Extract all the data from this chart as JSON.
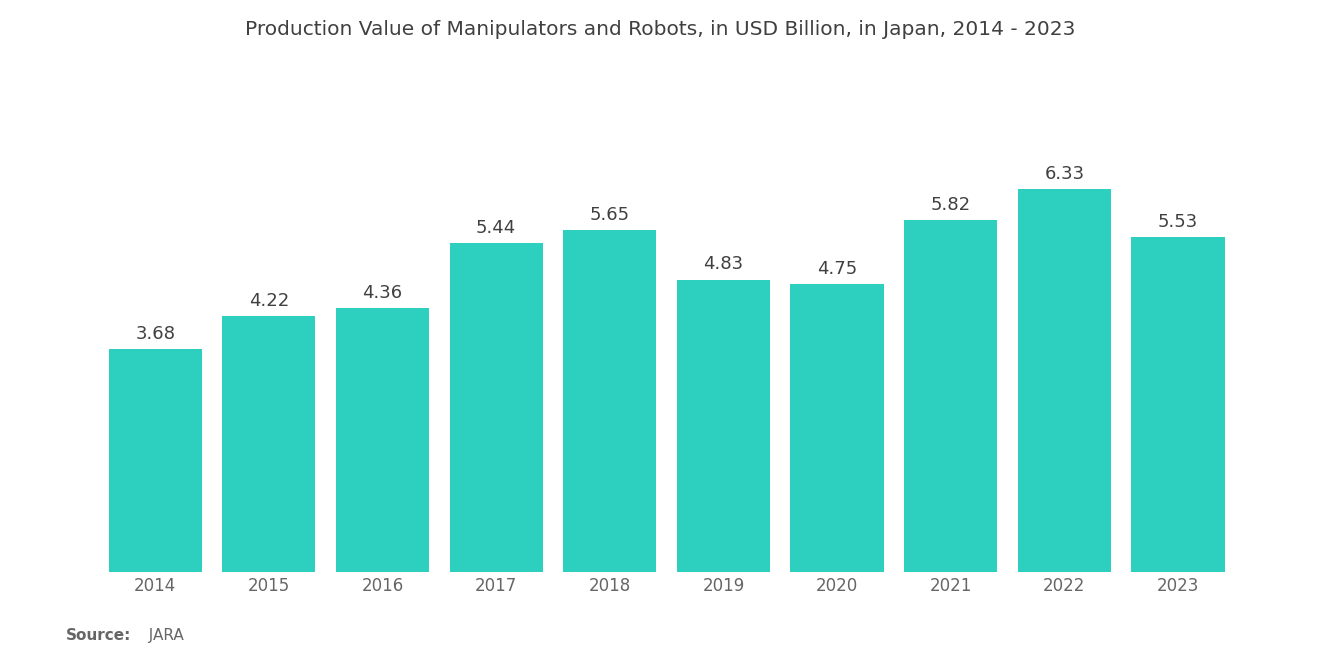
{
  "title": "Production Value of Manipulators and Robots, in USD Billion, in Japan, 2014 - 2023",
  "years": [
    2014,
    2015,
    2016,
    2017,
    2018,
    2019,
    2020,
    2021,
    2022,
    2023
  ],
  "values": [
    3.68,
    4.22,
    4.36,
    5.44,
    5.65,
    4.83,
    4.75,
    5.82,
    6.33,
    5.53
  ],
  "bar_color": "#2DCFBE",
  "background_color": "#FFFFFF",
  "title_color": "#404040",
  "label_color": "#404040",
  "tick_color": "#666666",
  "source_label_bold": "Source:",
  "source_label_text": "  JARA",
  "title_fontsize": 14.5,
  "label_fontsize": 13,
  "tick_fontsize": 12,
  "source_fontsize": 11,
  "ylim": [
    0,
    7.8
  ],
  "bar_width": 0.82
}
